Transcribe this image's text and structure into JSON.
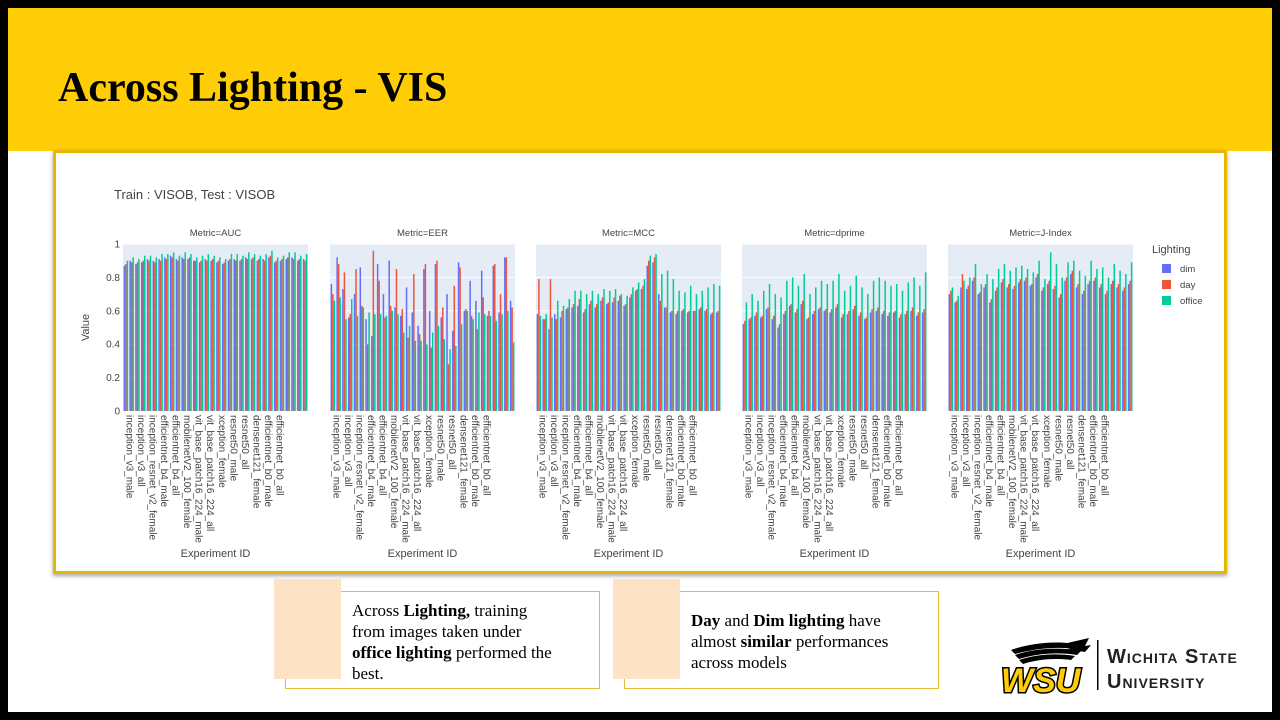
{
  "slide": {
    "title": "Across Lighting - VIS",
    "accent_color": "#ffcd05"
  },
  "callouts": [
    {
      "lines": [
        [
          {
            "t": "Across ",
            "b": false
          },
          {
            "t": "Lighting,",
            "b": true
          },
          {
            "t": " training",
            "b": false
          }
        ],
        [
          {
            "t": "from images taken under",
            "b": false
          }
        ],
        [
          {
            "t": "office lighting",
            "b": true
          },
          {
            "t": " performed the",
            "b": false
          }
        ],
        [
          {
            "t": "best.",
            "b": false
          }
        ]
      ]
    },
    {
      "lines": [
        [
          {
            "t": "Day",
            "b": true
          },
          {
            "t": " and ",
            "b": false
          },
          {
            "t": "Dim lighting",
            "b": true
          },
          {
            "t": " have",
            "b": false
          }
        ],
        [
          {
            "t": "almost ",
            "b": false
          },
          {
            "t": "similar",
            "b": true
          },
          {
            "t": " performances",
            "b": false
          }
        ],
        [
          {
            "t": "across models",
            "b": false
          }
        ]
      ]
    }
  ],
  "logo": {
    "mark_text": "WSU",
    "name_line1": "Wichita State",
    "name_line2": "University"
  },
  "chart_data": {
    "type": "bar",
    "title": "Train : VISOB, Test : VISOB",
    "ylabel": "Value",
    "xlabel": "Experiment ID",
    "ylim": [
      0,
      1
    ],
    "yticks": [
      0,
      0.2,
      0.4,
      0.6,
      0.8,
      1
    ],
    "legend": {
      "title": "Lighting",
      "placement": "right"
    },
    "series_colors": {
      "dim": "#636efa",
      "day": "#ef553b",
      "office": "#00cc96"
    },
    "series_names": [
      "dim",
      "day",
      "office"
    ],
    "categories": [
      "inception_v3_male",
      "inception_v3_all",
      "inception_resnet_v2_female",
      "efficientnet_b4_male",
      "efficientnet_b4_all",
      "mobilenetV2_100_female",
      "vit_base_patch16_224_male",
      "vit_base_patch16_224_all",
      "xception_female",
      "resnet50_male",
      "resnet50_all",
      "densenet121_female",
      "efficientnet_b0_male",
      "efficientnet_b0_all"
    ],
    "panels": [
      {
        "metric": "Metric=AUC",
        "dim": [
          0.87,
          0.9,
          0.88,
          0.89,
          0.91,
          0.9,
          0.91,
          0.92,
          0.93,
          0.91,
          0.92,
          0.91,
          0.9,
          0.89,
          0.91,
          0.9,
          0.89,
          0.88,
          0.9,
          0.91,
          0.9,
          0.92,
          0.91,
          0.9,
          0.91,
          0.92,
          0.89,
          0.9,
          0.91,
          0.92,
          0.9,
          0.91
        ],
        "day": [
          0.88,
          0.89,
          0.89,
          0.9,
          0.9,
          0.89,
          0.9,
          0.91,
          0.92,
          0.9,
          0.91,
          0.92,
          0.9,
          0.9,
          0.9,
          0.91,
          0.9,
          0.89,
          0.91,
          0.9,
          0.91,
          0.91,
          0.92,
          0.91,
          0.9,
          0.93,
          0.9,
          0.91,
          0.92,
          0.91,
          0.91,
          0.9
        ],
        "office": [
          0.9,
          0.92,
          0.91,
          0.93,
          0.93,
          0.92,
          0.94,
          0.94,
          0.95,
          0.93,
          0.95,
          0.94,
          0.92,
          0.93,
          0.94,
          0.93,
          0.92,
          0.91,
          0.94,
          0.94,
          0.93,
          0.95,
          0.94,
          0.93,
          0.94,
          0.96,
          0.92,
          0.93,
          0.95,
          0.95,
          0.93,
          0.94
        ]
      },
      {
        "metric": "Metric=EER",
        "dim": [
          0.76,
          0.92,
          0.73,
          0.56,
          0.7,
          0.86,
          0.55,
          0.45,
          0.88,
          0.7,
          0.9,
          0.62,
          0.57,
          0.74,
          0.59,
          0.51,
          0.85,
          0.6,
          0.88,
          0.56,
          0.7,
          0.48,
          0.89,
          0.6,
          0.78,
          0.66,
          0.84,
          0.57,
          0.87,
          0.59,
          0.92,
          0.66
        ],
        "day": [
          0.7,
          0.88,
          0.83,
          0.58,
          0.85,
          0.63,
          0.4,
          0.96,
          0.78,
          0.56,
          0.63,
          0.85,
          0.61,
          0.44,
          0.82,
          0.46,
          0.88,
          0.38,
          0.9,
          0.62,
          0.28,
          0.75,
          0.86,
          0.61,
          0.57,
          0.49,
          0.68,
          0.6,
          0.88,
          0.7,
          0.92,
          0.62
        ],
        "office": [
          0.66,
          0.68,
          0.55,
          0.67,
          0.57,
          0.62,
          0.59,
          0.58,
          0.58,
          0.57,
          0.6,
          0.58,
          0.47,
          0.51,
          0.42,
          0.42,
          0.4,
          0.47,
          0.51,
          0.43,
          0.37,
          0.39,
          0.52,
          0.6,
          0.55,
          0.59,
          0.58,
          0.57,
          0.54,
          0.58,
          0.6,
          0.41
        ]
      },
      {
        "metric": "Metric=MCC",
        "dim": [
          0.58,
          0.55,
          0.49,
          0.58,
          0.56,
          0.61,
          0.62,
          0.63,
          0.59,
          0.64,
          0.62,
          0.66,
          0.64,
          0.65,
          0.66,
          0.63,
          0.68,
          0.72,
          0.73,
          0.87,
          0.89,
          0.7,
          0.62,
          0.59,
          0.58,
          0.6,
          0.59,
          0.6,
          0.61,
          0.6,
          0.58,
          0.59
        ],
        "day": [
          0.79,
          0.55,
          0.79,
          0.55,
          0.6,
          0.62,
          0.64,
          0.67,
          0.61,
          0.66,
          0.64,
          0.68,
          0.65,
          0.68,
          0.69,
          0.64,
          0.7,
          0.73,
          0.75,
          0.9,
          0.92,
          0.66,
          0.62,
          0.6,
          0.6,
          0.61,
          0.6,
          0.6,
          0.62,
          0.61,
          0.59,
          0.6
        ],
        "office": [
          0.57,
          0.58,
          0.56,
          0.66,
          0.63,
          0.67,
          0.72,
          0.72,
          0.7,
          0.72,
          0.7,
          0.73,
          0.72,
          0.73,
          0.7,
          0.69,
          0.74,
          0.77,
          0.79,
          0.93,
          0.94,
          0.82,
          0.84,
          0.79,
          0.72,
          0.71,
          0.75,
          0.7,
          0.72,
          0.74,
          0.76,
          0.75
        ]
      },
      {
        "metric": "Metric=dprime",
        "dim": [
          0.52,
          0.55,
          0.57,
          0.56,
          0.61,
          0.55,
          0.5,
          0.58,
          0.63,
          0.59,
          0.64,
          0.55,
          0.58,
          0.61,
          0.6,
          0.59,
          0.62,
          0.56,
          0.58,
          0.61,
          0.57,
          0.55,
          0.59,
          0.6,
          0.58,
          0.57,
          0.59,
          0.56,
          0.58,
          0.6,
          0.57,
          0.59
        ],
        "day": [
          0.54,
          0.56,
          0.59,
          0.57,
          0.62,
          0.57,
          0.52,
          0.6,
          0.64,
          0.61,
          0.66,
          0.56,
          0.6,
          0.62,
          0.61,
          0.61,
          0.64,
          0.58,
          0.6,
          0.63,
          0.59,
          0.56,
          0.61,
          0.62,
          0.6,
          0.59,
          0.6,
          0.58,
          0.6,
          0.62,
          0.59,
          0.61
        ],
        "office": [
          0.65,
          0.7,
          0.66,
          0.72,
          0.76,
          0.7,
          0.68,
          0.78,
          0.8,
          0.75,
          0.82,
          0.7,
          0.74,
          0.78,
          0.76,
          0.78,
          0.82,
          0.72,
          0.75,
          0.81,
          0.74,
          0.7,
          0.78,
          0.8,
          0.78,
          0.75,
          0.76,
          0.72,
          0.77,
          0.8,
          0.75,
          0.83
        ]
      },
      {
        "metric": "Metric=J-Index",
        "dim": [
          0.7,
          0.65,
          0.74,
          0.73,
          0.78,
          0.7,
          0.74,
          0.65,
          0.72,
          0.77,
          0.74,
          0.73,
          0.77,
          0.78,
          0.75,
          0.8,
          0.72,
          0.76,
          0.73,
          0.68,
          0.78,
          0.82,
          0.74,
          0.7,
          0.76,
          0.78,
          0.74,
          0.7,
          0.76,
          0.74,
          0.72,
          0.76
        ],
        "day": [
          0.72,
          0.66,
          0.82,
          0.75,
          0.8,
          0.71,
          0.76,
          0.67,
          0.74,
          0.79,
          0.76,
          0.75,
          0.79,
          0.8,
          0.76,
          0.82,
          0.74,
          0.78,
          0.75,
          0.7,
          0.8,
          0.84,
          0.76,
          0.72,
          0.78,
          0.8,
          0.76,
          0.72,
          0.78,
          0.76,
          0.74,
          0.78
        ],
        "office": [
          0.74,
          0.69,
          0.78,
          0.8,
          0.88,
          0.76,
          0.82,
          0.79,
          0.85,
          0.88,
          0.84,
          0.86,
          0.87,
          0.85,
          0.83,
          0.9,
          0.79,
          0.95,
          0.88,
          0.8,
          0.89,
          0.9,
          0.84,
          0.81,
          0.9,
          0.85,
          0.86,
          0.8,
          0.88,
          0.84,
          0.82,
          0.89
        ]
      }
    ]
  }
}
